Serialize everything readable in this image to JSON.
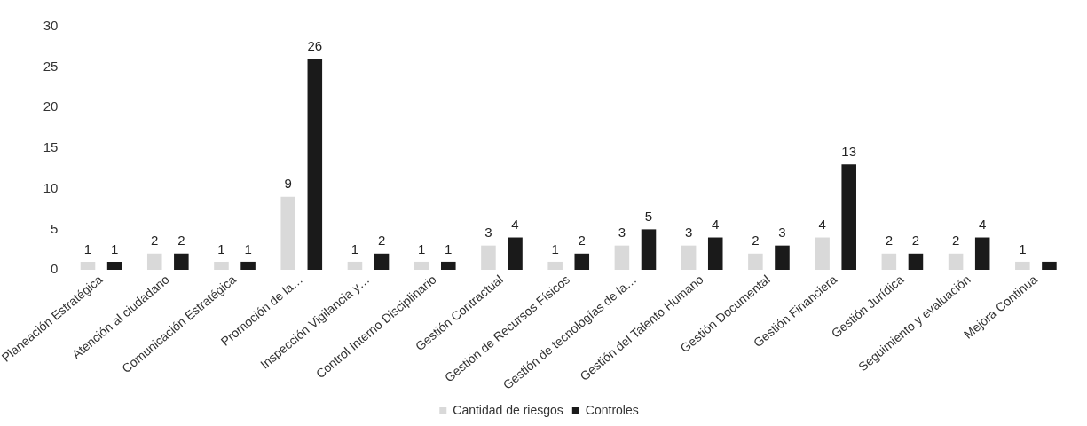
{
  "chart_data": {
    "type": "bar",
    "categories": [
      "Planeación Estratégica",
      "Atención al ciudadano",
      "Comunicación Estratégica",
      "Promoción de la…",
      "Inspección Vigilancia y…",
      "Control Interno Disciplinario",
      "Gestión Contractual",
      "Gestión de Recursos Físicos",
      "Gestión de tecnologías de la…",
      "Gestión del Talento Humano",
      "Gestión Documental",
      "Gestión Financiera",
      "Gestión Jurídica",
      "Seguimiento y evaluación",
      "Mejora Continua"
    ],
    "series": [
      {
        "name": "Cantidad de riesgos",
        "color": "#d9d9d9",
        "values": [
          1,
          2,
          1,
          9,
          1,
          1,
          3,
          1,
          3,
          3,
          2,
          4,
          2,
          2,
          1
        ],
        "value_labels": [
          "1",
          "2",
          "1",
          "9",
          "1",
          "1",
          "3",
          "1",
          "3",
          "3",
          "2",
          "4",
          "2",
          "2",
          "1"
        ]
      },
      {
        "name": "Controles",
        "color": "#1a1a1a",
        "values": [
          1,
          2,
          1,
          26,
          2,
          1,
          4,
          2,
          5,
          4,
          3,
          13,
          2,
          4,
          1
        ],
        "value_labels": [
          "1",
          "2",
          "1",
          "26",
          "2",
          "1",
          "4",
          "2",
          "5",
          "4",
          "3",
          "13",
          "2",
          "4",
          null
        ]
      }
    ],
    "ylim": [
      0,
      30
    ],
    "yticks": [
      0,
      5,
      10,
      15,
      20,
      25,
      30
    ],
    "grid": false,
    "legend": "bottom"
  }
}
